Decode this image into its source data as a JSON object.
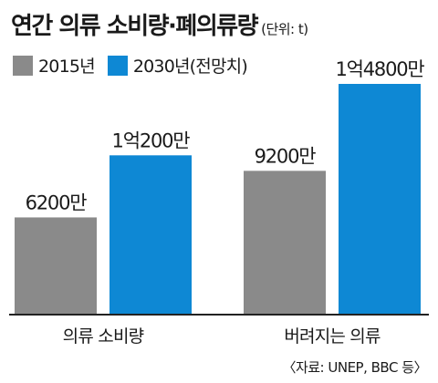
{
  "header": {
    "title": "연간 의류 소비량·폐의류량",
    "unit": "(단위: t)"
  },
  "colors": {
    "2015": "#8a8a8a",
    "2030": "#0e88d4",
    "axis": "#222222"
  },
  "source": "〈자료: UNEP, BBC 등〉",
  "chart_data": {
    "type": "bar",
    "title": "연간 의류 소비량·폐의류량",
    "unit": "(단위: t)",
    "categories": [
      "의류 소비량",
      "버려지는 의류"
    ],
    "series": [
      {
        "name": "2015년",
        "values": [
          62000000,
          92000000
        ],
        "labels": [
          "6200만",
          "9200만"
        ]
      },
      {
        "name": "2030년(전망치)",
        "values": [
          102000000,
          148000000
        ],
        "labels": [
          "1억200만",
          "1억4800만"
        ]
      }
    ],
    "legend": "top-left",
    "grid": false
  }
}
